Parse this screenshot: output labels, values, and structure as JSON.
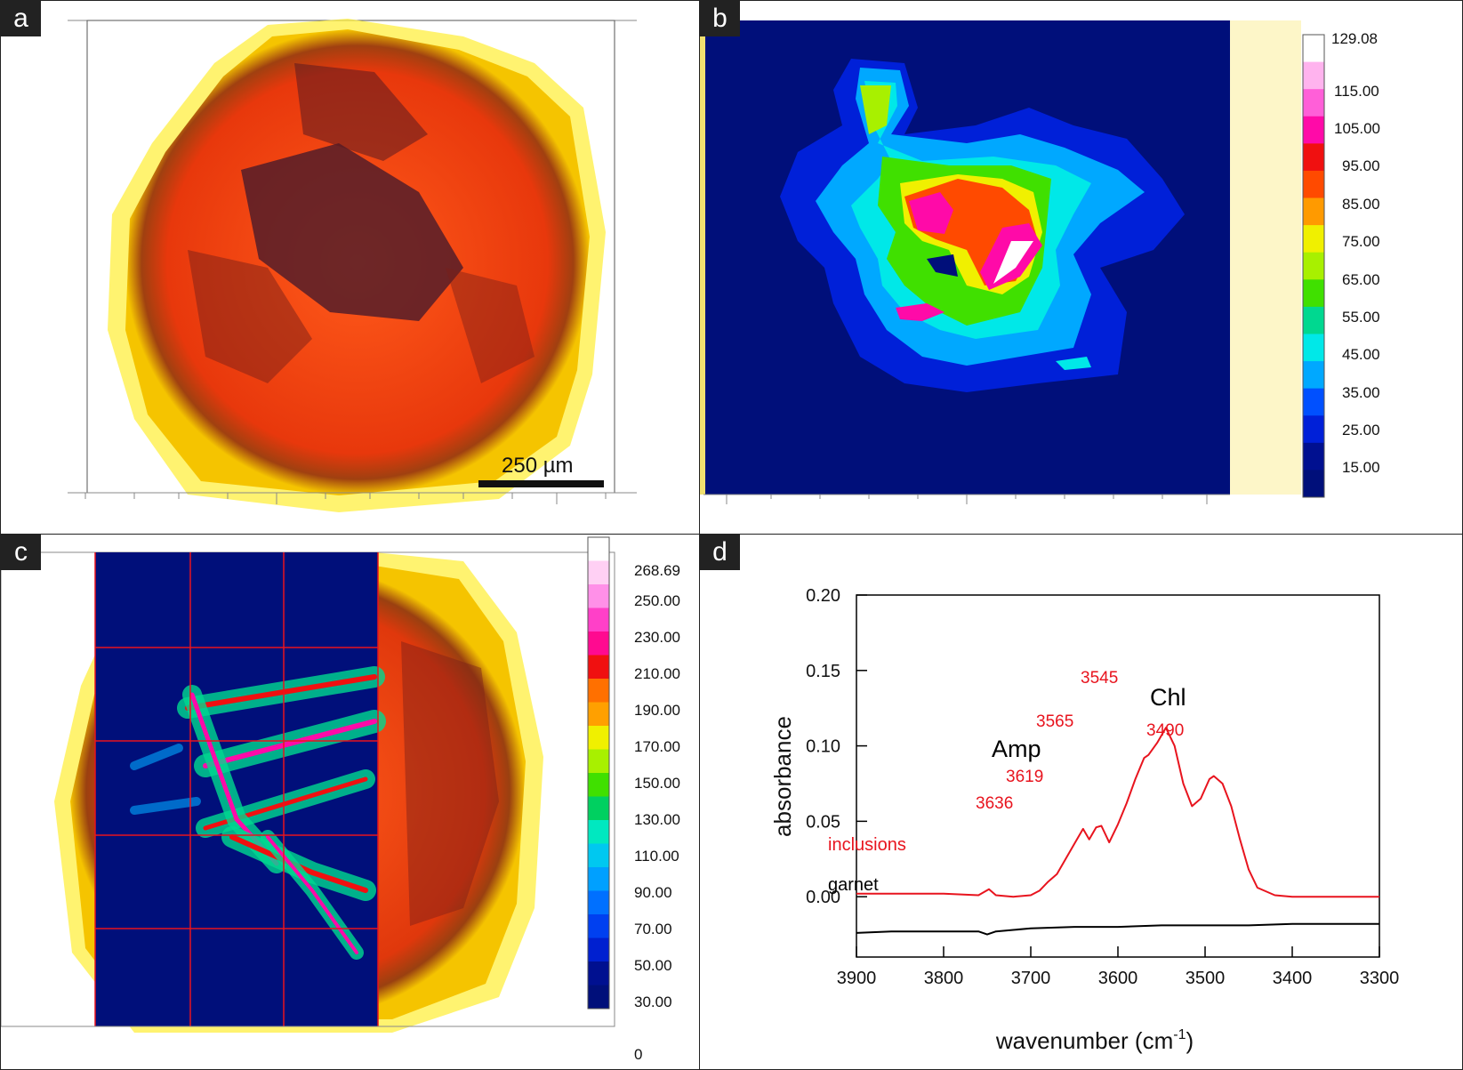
{
  "panels": {
    "a": {
      "label": "a",
      "scale_bar": "250  µm"
    },
    "b": {
      "label": "b",
      "colorbar": [
        "129.08",
        "115.00",
        "105.00",
        "95.00",
        "85.00",
        "75.00",
        "65.00",
        "55.00",
        "45.00",
        "35.00",
        "25.00",
        "15.00"
      ],
      "colorbar_colors": [
        "#ffffff",
        "#ffb3ee",
        "#ff5fd8",
        "#ff0aa8",
        "#f01010",
        "#ff4a00",
        "#ff9a00",
        "#f0f000",
        "#a8f000",
        "#40e000",
        "#00d890",
        "#00e8e8",
        "#00a8ff",
        "#0050ff",
        "#0020d8",
        "#001090",
        "#000f7a"
      ]
    },
    "c": {
      "label": "c",
      "colorbar": [
        "268.69",
        "250.00",
        "230.00",
        "210.00",
        "190.00",
        "170.00",
        "150.00",
        "130.00",
        "110.00",
        "90.00",
        "70.00",
        "50.00",
        "30.00",
        "0"
      ]
    },
    "d": {
      "label": "d"
    }
  },
  "chart_data": {
    "type": "line",
    "title": "",
    "xlabel": "wavenumber (cm",
    "xlabel_sup": "-1",
    "xlabel_close": ")",
    "ylabel": "absorbance",
    "xlim": [
      3900,
      3300
    ],
    "ylim": [
      -0.04,
      0.2
    ],
    "x_ticks": [
      "3900",
      "3800",
      "3700",
      "3600",
      "3500",
      "3400",
      "3300"
    ],
    "y_ticks": [
      "0.20",
      "0.15",
      "0.10",
      "0.05",
      "0.00"
    ],
    "series": [
      {
        "name": "inclusions",
        "color": "#e8141e",
        "x": [
          3900,
          3850,
          3800,
          3760,
          3748,
          3740,
          3720,
          3700,
          3690,
          3680,
          3670,
          3660,
          3650,
          3640,
          3633,
          3625,
          3619,
          3610,
          3600,
          3590,
          3580,
          3570,
          3565,
          3555,
          3545,
          3535,
          3525,
          3515,
          3505,
          3495,
          3490,
          3480,
          3470,
          3460,
          3450,
          3440,
          3420,
          3400,
          3350,
          3300
        ],
        "y": [
          0.002,
          0.002,
          0.002,
          0.001,
          0.005,
          0.001,
          0.0,
          0.001,
          0.004,
          0.01,
          0.015,
          0.025,
          0.035,
          0.045,
          0.038,
          0.046,
          0.047,
          0.036,
          0.048,
          0.062,
          0.078,
          0.092,
          0.094,
          0.102,
          0.112,
          0.1,
          0.075,
          0.06,
          0.065,
          0.078,
          0.08,
          0.075,
          0.06,
          0.038,
          0.018,
          0.006,
          0.001,
          0.0,
          0.0,
          0.0
        ]
      },
      {
        "name": "garnet",
        "color": "#000000",
        "x": [
          3900,
          3860,
          3820,
          3790,
          3760,
          3750,
          3740,
          3720,
          3700,
          3650,
          3600,
          3550,
          3500,
          3450,
          3400,
          3350,
          3300
        ],
        "y": [
          -0.024,
          -0.023,
          -0.023,
          -0.023,
          -0.023,
          -0.025,
          -0.023,
          -0.022,
          -0.021,
          -0.02,
          -0.02,
          -0.019,
          -0.019,
          -0.019,
          -0.018,
          -0.018,
          -0.018
        ]
      }
    ],
    "annotations": [
      {
        "text": "inclusions",
        "color": "#e8141e"
      },
      {
        "text": "garnet",
        "color": "#000000"
      },
      {
        "text": "Amp",
        "color": "#000000"
      },
      {
        "text": "Chl",
        "color": "#000000"
      },
      {
        "text": "3636",
        "color": "#e8141e"
      },
      {
        "text": "3619",
        "color": "#e8141e"
      },
      {
        "text": "3565",
        "color": "#e8141e"
      },
      {
        "text": "3545",
        "color": "#e8141e"
      },
      {
        "text": "3490",
        "color": "#e8141e"
      }
    ]
  }
}
